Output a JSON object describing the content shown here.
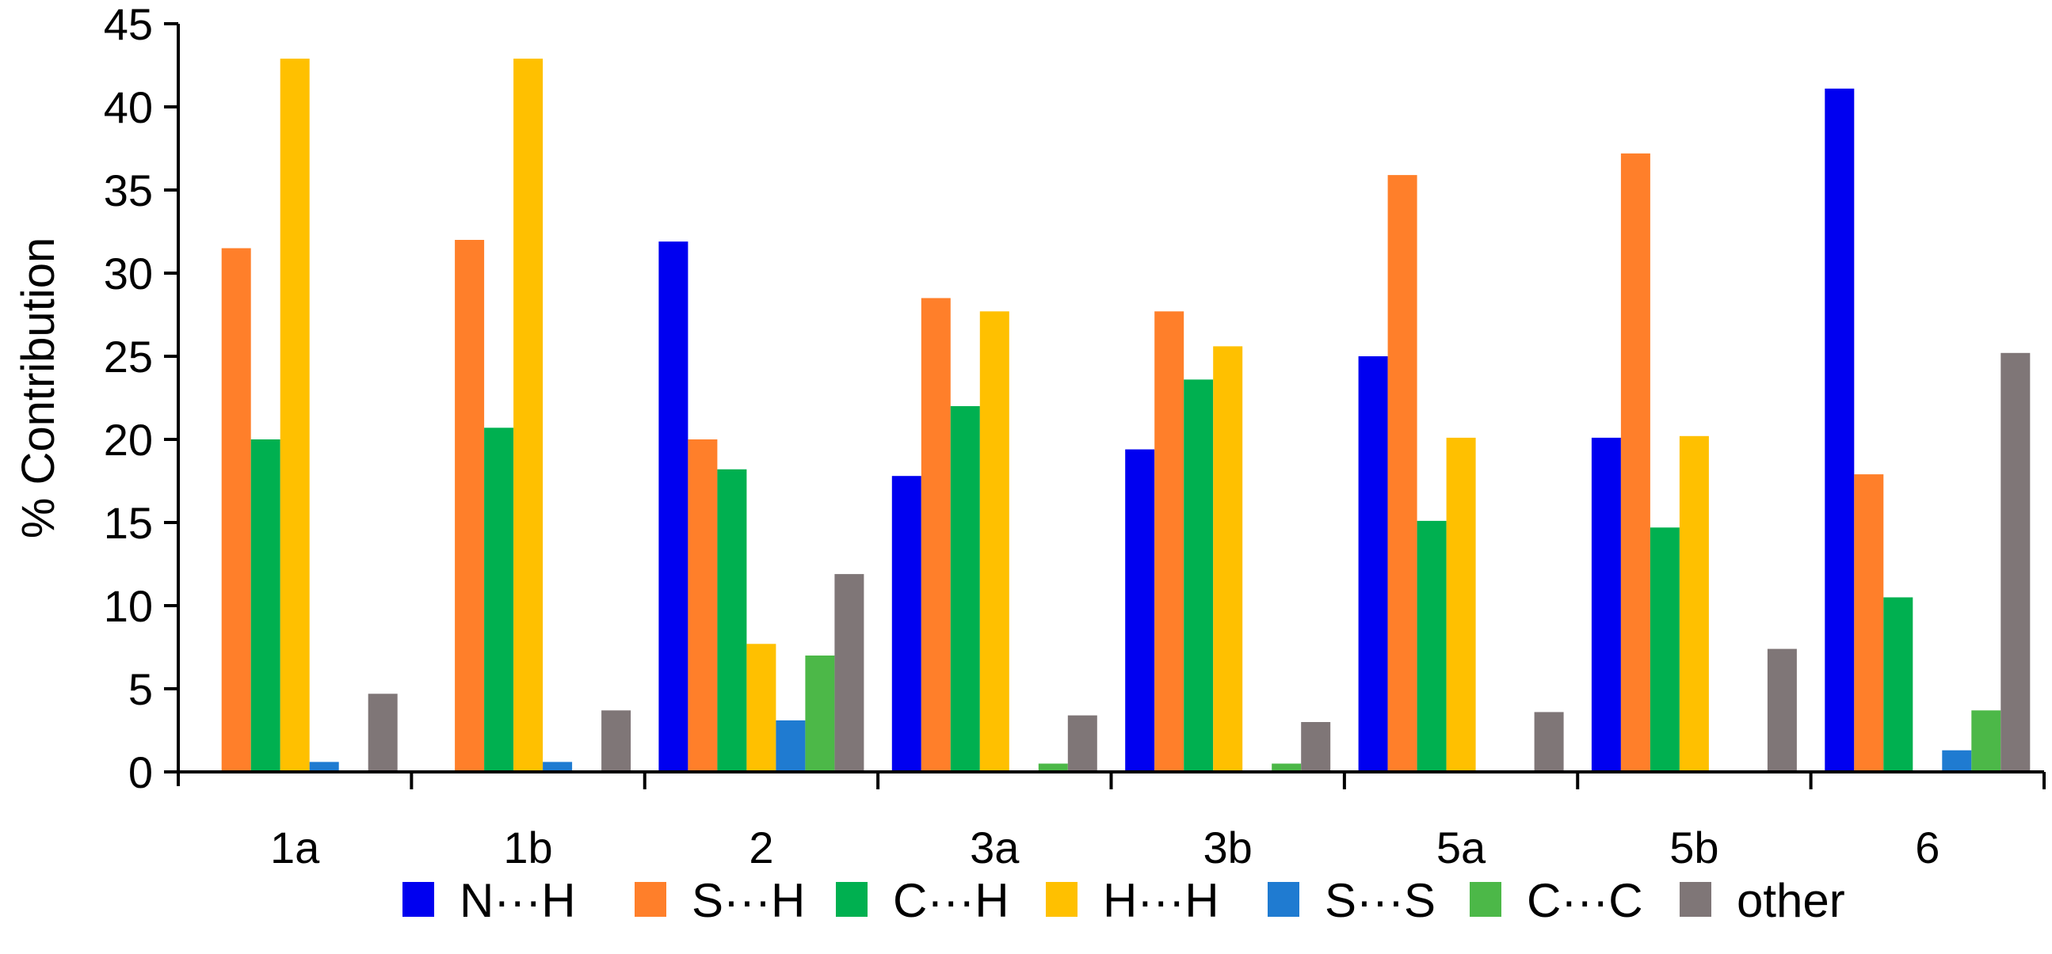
{
  "chart_data": {
    "type": "bar",
    "title": "",
    "xlabel": "",
    "ylabel": "% Contribution",
    "ylim": [
      0,
      45
    ],
    "yticks": [
      0,
      5,
      10,
      15,
      20,
      25,
      30,
      35,
      40,
      45
    ],
    "grid": false,
    "legend_position": "bottom",
    "categories": [
      "1a",
      "1b",
      "2",
      "3a",
      "3b",
      "5a",
      "5b",
      "6"
    ],
    "series": [
      {
        "name": "N···H",
        "color": "#0000f0",
        "values": [
          0,
          0,
          31.9,
          17.8,
          19.4,
          25.0,
          20.1,
          41.1
        ]
      },
      {
        "name": "S···H",
        "color": "#ff7f2a",
        "values": [
          31.5,
          32.0,
          20.0,
          28.5,
          27.7,
          35.9,
          37.2,
          17.9
        ]
      },
      {
        "name": "C···H",
        "color": "#00b050",
        "values": [
          20.0,
          20.7,
          18.2,
          22.0,
          23.6,
          15.1,
          14.7,
          10.5
        ]
      },
      {
        "name": "H···H",
        "color": "#ffc000",
        "values": [
          42.9,
          42.9,
          7.7,
          27.7,
          25.6,
          20.1,
          20.2,
          0
        ]
      },
      {
        "name": "S···S",
        "color": "#1f7bd1",
        "values": [
          0.6,
          0.6,
          3.1,
          0,
          0,
          0,
          0,
          1.3
        ]
      },
      {
        "name": "C···C",
        "color": "#4cb848",
        "values": [
          0,
          0,
          7.0,
          0.5,
          0.5,
          0,
          0,
          3.7
        ]
      },
      {
        "name": "other",
        "color": "#7f7677",
        "values": [
          4.7,
          3.7,
          11.9,
          3.4,
          3.0,
          3.6,
          7.4,
          25.2
        ]
      }
    ]
  }
}
